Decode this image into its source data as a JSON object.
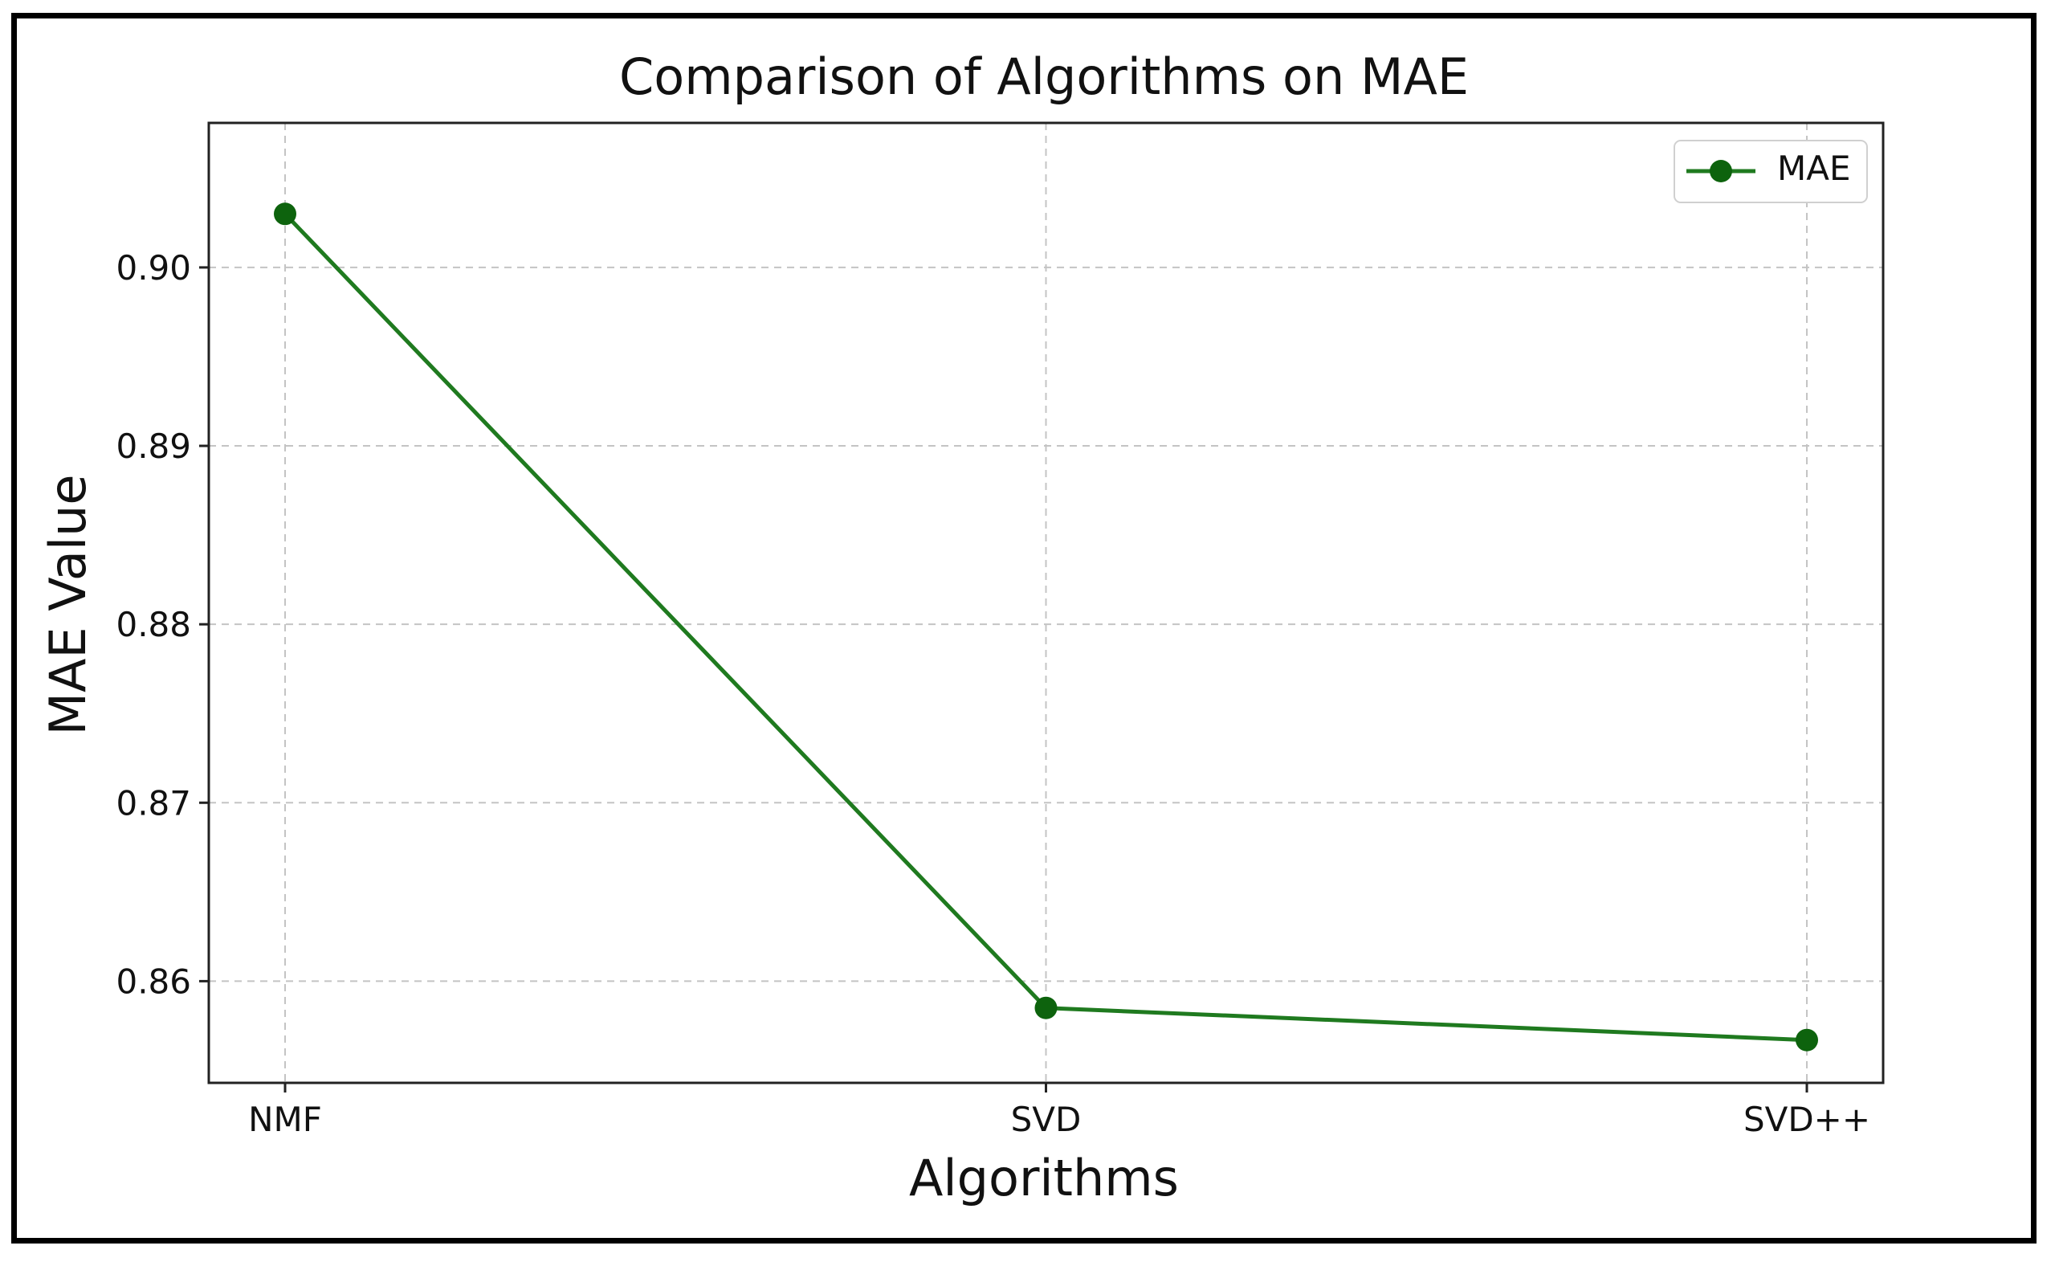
{
  "chart_data": {
    "type": "line",
    "title": "Comparison of Algorithms on MAE",
    "xlabel": "Algorithms",
    "ylabel": "MAE Value",
    "categories": [
      "NMF",
      "SVD",
      "SVD++"
    ],
    "series": [
      {
        "name": "MAE",
        "values": [
          0.903,
          0.8585,
          0.8567
        ],
        "color": "#1f7a1f",
        "marker_color": "#0d630d",
        "marker": "circle"
      }
    ],
    "ylim": [
      0.8543,
      0.9081
    ],
    "yticks": [
      0.86,
      0.87,
      0.88,
      0.89,
      0.9
    ],
    "ytick_labels": [
      "0.86",
      "0.87",
      "0.88",
      "0.89",
      "0.90"
    ],
    "grid": true,
    "legend_position": "top-right"
  }
}
